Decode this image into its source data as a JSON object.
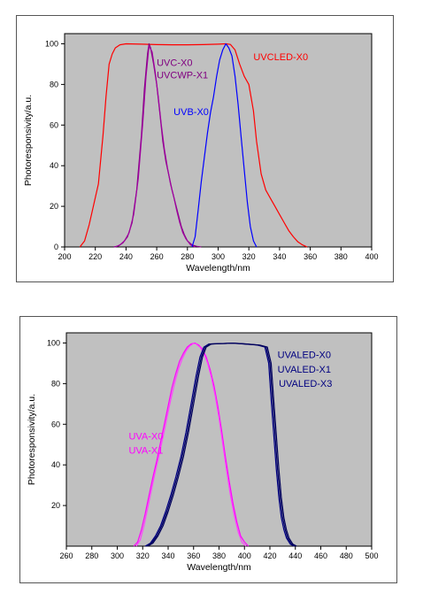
{
  "chart_data": [
    {
      "type": "line",
      "xlabel": "Wavelength/nm",
      "ylabel": "Photoresponsivity/a.u.",
      "xlim": [
        200,
        400
      ],
      "ylim": [
        0,
        105
      ],
      "xticks": [
        200,
        220,
        240,
        260,
        280,
        300,
        320,
        340,
        360,
        380,
        400
      ],
      "yticks": [
        0,
        20,
        40,
        60,
        80,
        100
      ],
      "grid": false,
      "plot_background": "#c0c0c0",
      "series": [
        {
          "name": "UVCLED-X0",
          "color": "#ff0000",
          "x": [
            210,
            213,
            216,
            219,
            222,
            225,
            227,
            229,
            231,
            233,
            236,
            240,
            250,
            260,
            270,
            280,
            290,
            300,
            305,
            308,
            311,
            314,
            317,
            320,
            323,
            325,
            328,
            331,
            334,
            337,
            340,
            343,
            346,
            349,
            352,
            355,
            358
          ],
          "y": [
            0,
            3,
            11,
            21,
            31,
            55,
            74,
            90,
            95,
            98,
            99.5,
            100,
            99.8,
            99.6,
            99.5,
            99.5,
            99.6,
            99.8,
            100,
            99.7,
            97,
            90,
            84,
            80,
            67,
            52,
            36,
            28,
            24,
            20,
            16,
            12,
            8,
            5,
            2.5,
            1,
            0
          ]
        },
        {
          "name": "UVC-X0",
          "color": "#800080",
          "x": [
            232,
            235,
            238,
            241,
            244,
            247,
            250,
            252,
            254,
            255,
            256,
            258,
            260,
            262,
            264,
            266,
            268,
            270,
            272,
            274,
            276,
            278,
            280,
            283,
            286,
            289
          ],
          "y": [
            0,
            0.5,
            2,
            5,
            12,
            28,
            55,
            78,
            95,
            100,
            98,
            90,
            80,
            66,
            52,
            42,
            35,
            28,
            22,
            16,
            10,
            6,
            3,
            1,
            0.3,
            0
          ]
        },
        {
          "name": "UVCWP-X1",
          "color": "#a000a0",
          "x": [
            233,
            236,
            239,
            242,
            245,
            248,
            251,
            253,
            255,
            257,
            259,
            261,
            263,
            265,
            267,
            269,
            271,
            273,
            275,
            277,
            279,
            282,
            285
          ],
          "y": [
            0,
            1,
            3,
            7,
            16,
            34,
            62,
            84,
            99,
            96,
            86,
            74,
            60,
            48,
            39,
            31,
            25,
            18,
            12,
            7,
            4,
            1,
            0
          ]
        },
        {
          "name": "UVB-X0",
          "color": "#0000ff",
          "x": [
            283,
            285,
            287,
            289,
            291,
            293,
            295,
            297,
            299,
            301,
            303,
            305,
            307,
            309,
            311,
            313,
            315,
            317,
            319,
            321,
            323,
            325
          ],
          "y": [
            0,
            5,
            18,
            32,
            44,
            56,
            66,
            74,
            84,
            92,
            97,
            100,
            98,
            94,
            84,
            70,
            54,
            38,
            22,
            10,
            3,
            0
          ]
        }
      ],
      "annotations": [
        {
          "text": "UVCLED-X0",
          "x": 323,
          "y": 92,
          "color": "#ff0000"
        },
        {
          "text": "UVC-X0",
          "x": 260,
          "y": 89,
          "color": "#800080"
        },
        {
          "text": "UVCWP-X1",
          "x": 260,
          "y": 83,
          "color": "#800080"
        },
        {
          "text": "UVB-X0",
          "x": 271,
          "y": 65,
          "color": "#0000ff"
        }
      ]
    },
    {
      "type": "line",
      "xlabel": "Wavelength/nm",
      "ylabel": "Photoresponsivity/a.u.",
      "xlim": [
        260,
        500
      ],
      "ylim": [
        0,
        105
      ],
      "xticks": [
        260,
        280,
        300,
        320,
        340,
        360,
        380,
        400,
        420,
        440,
        460,
        480,
        500
      ],
      "yticks": [
        20,
        40,
        60,
        80,
        100
      ],
      "grid": false,
      "plot_background": "#c0c0c0",
      "series": [
        {
          "name": "UVA-X0",
          "color": "#ff00ff",
          "x": [
            313,
            316,
            319,
            322,
            325,
            328,
            331,
            334,
            337,
            340,
            343,
            346,
            349,
            352,
            355,
            358,
            361,
            364,
            367,
            370,
            373,
            376,
            379,
            382,
            385,
            388,
            391,
            394,
            397,
            400,
            403
          ],
          "y": [
            0,
            2,
            8,
            16,
            25,
            34,
            42,
            51,
            60,
            69,
            78,
            85,
            91,
            95,
            98,
            99.5,
            100,
            99,
            97,
            93,
            87,
            79,
            69,
            57,
            44,
            32,
            21,
            12,
            5,
            2,
            0
          ]
        },
        {
          "name": "UVA-X1",
          "color": "#ff40ff",
          "x": [
            315,
            318,
            321,
            324,
            327,
            330,
            333,
            336,
            339,
            342,
            345,
            348,
            351,
            354,
            357,
            360,
            362,
            365,
            368,
            371,
            374,
            377,
            380,
            383,
            386,
            389,
            392,
            395,
            398,
            401
          ],
          "y": [
            0,
            3,
            10,
            19,
            28,
            37,
            45,
            54,
            63,
            72,
            80,
            87,
            92,
            96,
            98.5,
            99.8,
            99.5,
            98,
            95,
            90,
            83,
            74,
            63,
            50,
            37,
            25,
            15,
            7,
            2,
            0
          ]
        },
        {
          "name": "UVALED-X0",
          "color": "#000080",
          "x": [
            322,
            326,
            330,
            334,
            338,
            342,
            346,
            350,
            354,
            358,
            362,
            365,
            368,
            372,
            380,
            390,
            400,
            410,
            416,
            419,
            421,
            423,
            425,
            427,
            429,
            431,
            433,
            436,
            439
          ],
          "y": [
            0,
            1.5,
            5,
            10,
            17,
            25,
            34,
            44,
            56,
            70,
            84,
            93,
            98,
            99.5,
            99.7,
            99.9,
            99.5,
            99,
            98,
            90,
            72,
            55,
            38,
            24,
            14,
            8,
            4,
            1,
            0
          ]
        },
        {
          "name": "UVALED-X1",
          "color": "#000066",
          "x": [
            323,
            327,
            331,
            335,
            339,
            343,
            347,
            351,
            355,
            359,
            363,
            366,
            369,
            373,
            381,
            391,
            401,
            411,
            417,
            420,
            422,
            424,
            426,
            428,
            430,
            432,
            434,
            437,
            440
          ],
          "y": [
            0,
            1.5,
            5,
            10,
            17,
            25,
            34,
            44,
            56,
            70,
            84,
            93,
            98,
            99.5,
            99.7,
            99.9,
            99.5,
            99,
            98,
            90,
            72,
            55,
            38,
            24,
            14,
            8,
            4,
            1,
            0
          ]
        },
        {
          "name": "UVALED-X3",
          "color": "#00005a",
          "x": [
            324,
            328,
            332,
            336,
            340,
            344,
            348,
            352,
            356,
            360,
            364,
            367,
            370,
            374,
            382,
            392,
            402,
            412,
            418,
            421,
            423,
            425,
            427,
            429,
            431,
            433,
            435,
            438,
            441
          ],
          "y": [
            0,
            1.5,
            5,
            10,
            17,
            25,
            34,
            44,
            56,
            70,
            84,
            93,
            98,
            99.5,
            99.7,
            99.9,
            99.5,
            99,
            98,
            90,
            72,
            55,
            38,
            24,
            14,
            8,
            4,
            1,
            0
          ]
        }
      ],
      "annotations": [
        {
          "text": "UVALED-X0",
          "x": 426,
          "y": 92.5,
          "color": "#000080"
        },
        {
          "text": "UVALED-X1",
          "x": 426,
          "y": 85.5,
          "color": "#000080"
        },
        {
          "text": "UVALED-X3",
          "x": 427,
          "y": 78.5,
          "color": "#000080"
        },
        {
          "text": "UVA-X0",
          "x": 309,
          "y": 52.5,
          "color": "#ff00ff"
        },
        {
          "text": "UVA-X1",
          "x": 309,
          "y": 45.5,
          "color": "#ff00ff"
        }
      ]
    }
  ]
}
